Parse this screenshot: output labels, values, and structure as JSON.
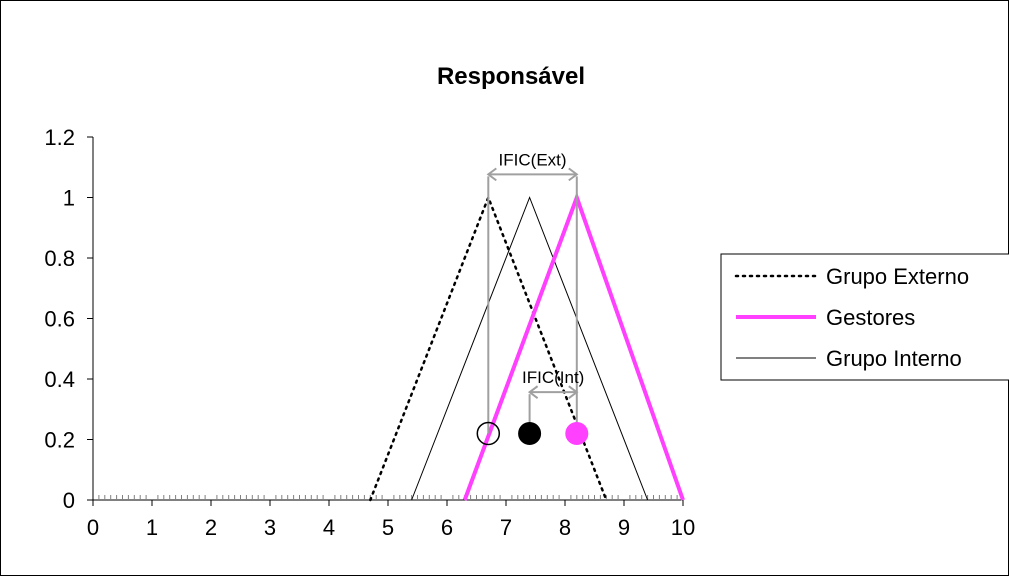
{
  "chart_data": {
    "type": "line",
    "title": "Responsável",
    "xlabel": "",
    "ylabel": "",
    "xlim": [
      0,
      10
    ],
    "ylim": [
      0,
      1.2
    ],
    "x_ticks": [
      "0",
      "1",
      "2",
      "3",
      "4",
      "5",
      "6",
      "7",
      "8",
      "9",
      "10"
    ],
    "y_ticks": [
      "0",
      "0.2",
      "0.4",
      "0.6",
      "0.8",
      "1",
      "1.2"
    ],
    "grid": false,
    "legend_position": "right",
    "series": [
      {
        "name": "Grupo Externo",
        "color": "#000000",
        "style": "dotted",
        "x": [
          4.7,
          6.7,
          8.7
        ],
        "y": [
          0,
          1,
          0
        ]
      },
      {
        "name": "Gestores",
        "color": "#ff40ff",
        "style": "thick",
        "x": [
          6.3,
          8.2,
          10.0
        ],
        "y": [
          0,
          1,
          0
        ]
      },
      {
        "name": "Grupo Interno",
        "color": "#000000",
        "style": "thin",
        "x": [
          5.4,
          7.4,
          9.4
        ],
        "y": [
          0,
          1,
          0
        ]
      }
    ],
    "markers": [
      {
        "kind": "open-circle",
        "color": "#000000",
        "x": 6.7,
        "y": 0.22
      },
      {
        "kind": "filled-circle",
        "color": "#000000",
        "x": 7.4,
        "y": 0.22
      },
      {
        "kind": "filled-circle",
        "color": "#ff40ff",
        "x": 8.2,
        "y": 0.22
      }
    ],
    "annotations": [
      {
        "text": "IFIC(Ext)",
        "x_from": 6.7,
        "x_to": 8.2,
        "y": 1.05,
        "color": "#a0a0a0"
      },
      {
        "text": "IFIC(Int)",
        "x_from": 7.4,
        "x_to": 8.2,
        "y": 0.33,
        "color": "#a0a0a0"
      }
    ]
  }
}
